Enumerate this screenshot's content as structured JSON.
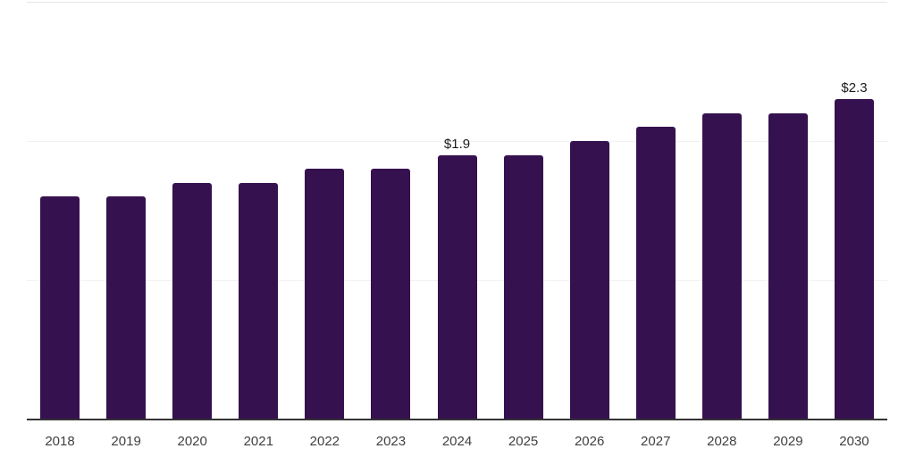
{
  "chart_data": {
    "type": "bar",
    "categories": [
      "2018",
      "2019",
      "2020",
      "2021",
      "2022",
      "2023",
      "2024",
      "2025",
      "2026",
      "2027",
      "2028",
      "2029",
      "2030"
    ],
    "values": [
      1.6,
      1.6,
      1.7,
      1.7,
      1.8,
      1.8,
      1.9,
      1.9,
      2.0,
      2.1,
      2.2,
      2.2,
      2.3
    ],
    "bar_labels": [
      "",
      "",
      "",
      "",
      "",
      "",
      "$1.9",
      "",
      "",
      "",
      "",
      "",
      "$2.3"
    ],
    "ylim": [
      0,
      3
    ],
    "gridline_values": [
      1,
      2,
      3
    ],
    "grid": true,
    "legend_position": "none",
    "y_axis_labels_visible": false,
    "colors": {
      "bar": "#36114F",
      "axis_line": "#333333",
      "gridline": "#f1f1f1",
      "top_gridline": "#e7e7e7",
      "bar_label_text": "#1a1a1a",
      "tick_label_text": "#404040",
      "background": "#ffffff"
    }
  }
}
